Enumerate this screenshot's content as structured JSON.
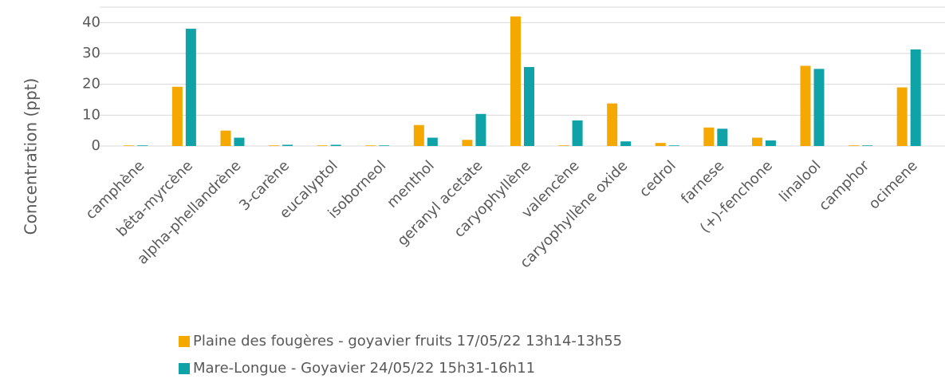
{
  "chart_data": {
    "type": "bar",
    "y_label": "Concentration (ppt)",
    "categories": [
      "camphène",
      "bêta-myrcène",
      "alpha-phellandrène",
      "3-carène",
      "eucalyptol",
      "isoborneol",
      "menthol",
      "geranyl acetate",
      "caryophyllène",
      "valencène",
      "caryophyllène oxide",
      "cedrol",
      "farnese",
      "(+)-fenchone",
      "linalool",
      "camphor",
      "ocimene"
    ],
    "series": [
      {
        "name": "Plaine des fougères - goyavier fruits 17/05/22 13h14-13h55",
        "color": "#f5a800",
        "values": [
          0.2,
          19.2,
          5,
          0.2,
          0.2,
          0.2,
          6.8,
          2,
          42,
          0.2,
          13.8,
          1,
          6,
          2.7,
          26,
          0.2,
          19
        ]
      },
      {
        "name": "Mare-Longue - Goyavier 24/05/22 15h31-16h11",
        "color": "#0fa3a8",
        "values": [
          0.2,
          38,
          2.7,
          0.4,
          0.4,
          0.2,
          2.7,
          10.4,
          25.6,
          8.3,
          1.5,
          0.2,
          5.6,
          1.8,
          25,
          0.2,
          31.3
        ]
      }
    ],
    "ylim": [
      0,
      45
    ],
    "yticks": [
      0,
      10,
      20,
      30,
      40
    ],
    "grid": true
  }
}
